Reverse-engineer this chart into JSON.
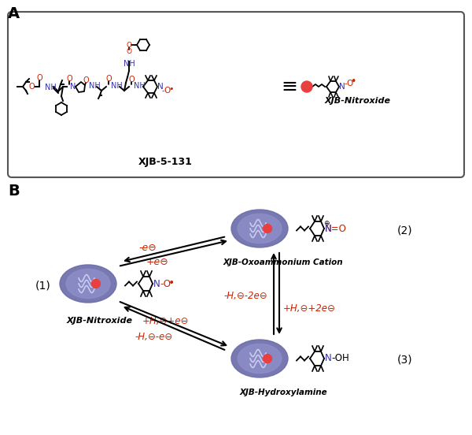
{
  "bg_color": "#ffffff",
  "panel_A_label": "A",
  "panel_B_label": "B",
  "xjb_label": "XJB-5-131",
  "xjb_nitroxide_label": "XJB-Nitroxide",
  "xjb_oxo_label": "XJB-Oxoammonium Cation",
  "xjb_hydroxyl_label": "XJB-Hydroxylamine",
  "label1": "(1)",
  "label2": "(2)",
  "label3": "(3)",
  "red_color": "#cc2200",
  "blue_color": "#3333aa",
  "black_color": "#000000",
  "purple_mito": "#6b6baa",
  "mito_inner": "#9090cc",
  "radical_red": "#e84040",
  "rxn_color": "#cc2200",
  "arrow_upper_forward": "-e⊖",
  "arrow_upper_reverse": "+e⊖",
  "arrow_lower_forward": "+H,⊖+e⊖",
  "arrow_lower_reverse": "-H,⊖-e⊖",
  "arrow_vert_down": "-H,⊖-2e⊖",
  "arrow_vert_up": "+H,⊖+2e⊖"
}
